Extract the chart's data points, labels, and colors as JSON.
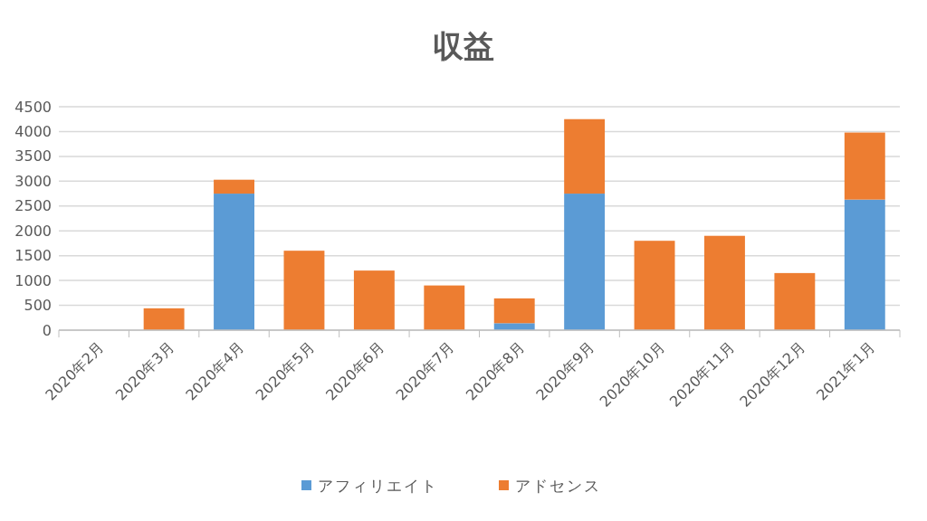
{
  "chart_data": {
    "type": "bar",
    "title": "収益",
    "stacked": true,
    "categories": [
      "2020年2月",
      "2020年3月",
      "2020年4月",
      "2020年5月",
      "2020年6月",
      "2020年7月",
      "2020年8月",
      "2020年9月",
      "2020年10月",
      "2020年11月",
      "2020年12月",
      "2021年1月"
    ],
    "series": [
      {
        "name": "アフィリエイト",
        "color": "#5b9bd5",
        "values": [
          0,
          0,
          2750,
          0,
          0,
          0,
          140,
          2750,
          0,
          0,
          0,
          2630
        ]
      },
      {
        "name": "アドセンス",
        "color": "#ed7d31",
        "values": [
          null,
          440,
          280,
          1600,
          1200,
          900,
          500,
          1500,
          1800,
          1900,
          1150,
          1350
        ]
      }
    ],
    "ylim": [
      0,
      4500
    ],
    "yticks": [
      0,
      500,
      1000,
      1500,
      2000,
      2500,
      3000,
      3500,
      4000,
      4500
    ],
    "grid": "y",
    "legend": "bottom"
  }
}
